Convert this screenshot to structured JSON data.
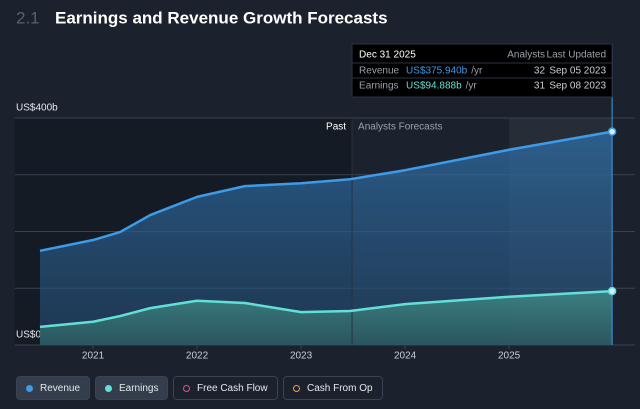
{
  "chart_data": {
    "type": "line",
    "section": "2.1",
    "title": "Earnings and Revenue Growth Forecasts",
    "x": [
      2020.49,
      2021,
      2021.26,
      2021.55,
      2022,
      2022.46,
      2023,
      2023.47,
      2024,
      2025,
      2025.99
    ],
    "series": [
      {
        "name": "Revenue",
        "color": "#3d9be9",
        "values": [
          166,
          185,
          199,
          229,
          261,
          280,
          285,
          292,
          308,
          344,
          375.94
        ]
      },
      {
        "name": "Earnings",
        "color": "#62e0d6",
        "values": [
          32,
          41,
          51,
          65,
          78,
          74,
          58,
          60,
          72,
          85,
          94.888
        ]
      }
    ],
    "xlim": [
      2020.25,
      2026.21
    ],
    "xticks": [
      2021,
      2022,
      2023,
      2024,
      2025
    ],
    "ylim": [
      0,
      400
    ],
    "yticks": [
      {
        "value": 0,
        "label": "US$0"
      },
      100,
      200,
      300,
      {
        "value": 400,
        "label": "US$400b"
      }
    ],
    "grid": true,
    "divider": {
      "x": 2023.49,
      "past_label": "Past",
      "forecast_label": "Analysts Forecasts"
    },
    "tooltip": {
      "date": "Dec 31 2025",
      "col_analysts": "Analysts",
      "col_updated": "Last Updated",
      "rows": [
        {
          "name": "Revenue",
          "value": "US$375.940b",
          "unit": "/yr",
          "analysts": "32",
          "updated": "Sep 05 2023"
        },
        {
          "name": "Earnings",
          "value": "US$94.888b",
          "unit": "/yr",
          "analysts": "31",
          "updated": "Sep 08 2023"
        }
      ]
    },
    "legend_extra": [
      {
        "name": "Free Cash Flow",
        "color": "#d9518f"
      },
      {
        "name": "Cash From Op",
        "color": "#e0a050"
      }
    ]
  }
}
